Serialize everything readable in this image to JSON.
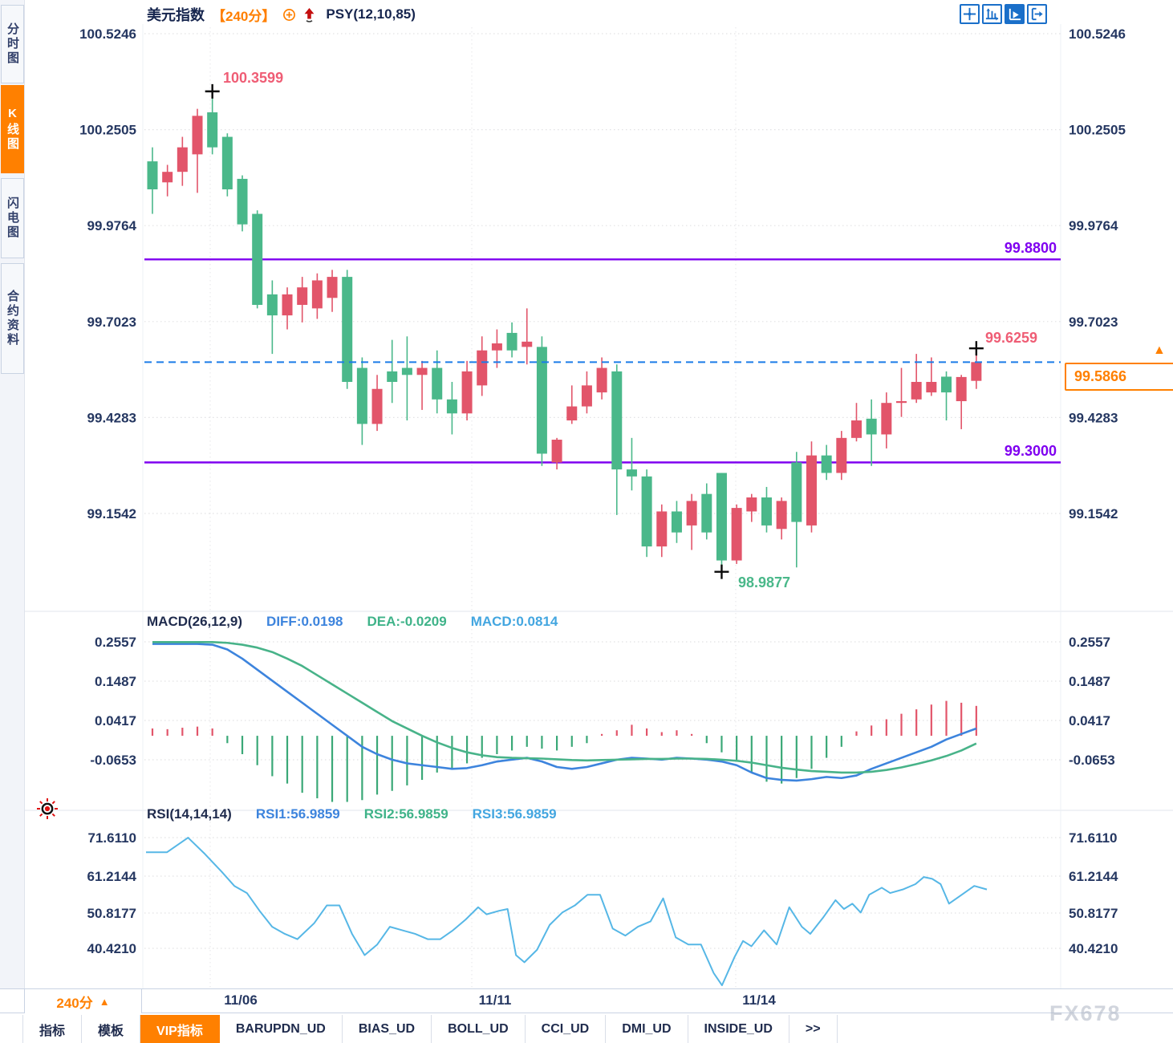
{
  "app": {
    "title": "美元指数",
    "interval_tag": "【240分】",
    "overlay_indicator": "PSY(12,10,85)"
  },
  "sidebar": {
    "tabs": [
      {
        "id": "time-share",
        "label": "分时图",
        "active": false
      },
      {
        "id": "kline",
        "label": "K线图",
        "active": true
      },
      {
        "id": "flash",
        "label": "闪电图",
        "active": false
      },
      {
        "id": "contract-info",
        "label": "合约资料",
        "active": false
      }
    ]
  },
  "toolbar": {
    "icons": [
      {
        "name": "crosshair-icon",
        "active": false
      },
      {
        "name": "axis-zoom-icon",
        "active": false
      },
      {
        "name": "auto-scale-icon",
        "active": true
      },
      {
        "name": "pan-export-icon",
        "active": false
      }
    ]
  },
  "annotations": {
    "high_label": "100.3599",
    "low_label": "98.9877",
    "last_high_label": "99.6259",
    "upper_level_label": "99.8800",
    "lower_level_label": "99.3000",
    "current_price_tag": "99.5866",
    "current_marker": "▲"
  },
  "macd_header": {
    "name": "MACD(26,12,9)",
    "diff": "DIFF:0.0198",
    "dea": "DEA:-0.0209",
    "macd": "MACD:0.0814"
  },
  "rsi_header": {
    "name": "RSI(14,14,14)",
    "rsi1": "RSI1:56.9859",
    "rsi2": "RSI2:56.9859",
    "rsi3": "RSI3:56.9859"
  },
  "x_axis": {
    "interval_button": "240分",
    "interval_arrow": "▲",
    "labels": [
      "11/06",
      "11/11",
      "11/14"
    ]
  },
  "bottom_tabs": [
    {
      "label": "指标",
      "active": false
    },
    {
      "label": "模板",
      "active": false
    },
    {
      "label": "VIP指标",
      "active": true
    },
    {
      "label": "BARUPDN_UD",
      "active": false
    },
    {
      "label": "BIAS_UD",
      "active": false
    },
    {
      "label": "BOLL_UD",
      "active": false
    },
    {
      "label": "CCI_UD",
      "active": false
    },
    {
      "label": "DMI_UD",
      "active": false
    },
    {
      "label": "INSIDE_UD",
      "active": false
    },
    {
      "label": ">>",
      "active": false
    }
  ],
  "watermark": "FX678",
  "colors": {
    "up_candle": "#e2556a",
    "down_candle": "#4ab88a",
    "level_line": "#7f00f0",
    "current_line": "#1b7ce8",
    "accent_orange": "#ff8000",
    "icon_blue": "#1a6fc9",
    "axis_text": "#253761",
    "diff_blue": "#3d84dd",
    "dea_green": "#48b389",
    "rsi_line": "#56b7e6",
    "hist_pos": "#e2556a",
    "hist_neg": "#3aa877"
  },
  "chart_data": [
    {
      "type": "candlestick",
      "title": "美元指数 240分",
      "y_ticks": [
        "100.5246",
        "100.2505",
        "99.9764",
        "99.7023",
        "99.4283",
        "99.1542"
      ],
      "y_top": 100.5246,
      "y_tick_step": 0.27408,
      "x_ticks": [
        "11/06",
        "11/11",
        "11/14"
      ],
      "levels": [
        {
          "price": 99.88,
          "label": "99.8800"
        },
        {
          "price": 99.3,
          "label": "99.3000"
        }
      ],
      "current_price": 99.5866,
      "markers": {
        "high": {
          "index": 5,
          "price": 100.3599
        },
        "low": {
          "index": 39,
          "price": 98.9877
        },
        "last": {
          "index": 56,
          "price": 99.6259
        }
      },
      "candles_ohlc": [
        [
          100.16,
          100.2,
          100.01,
          100.08
        ],
        [
          100.1,
          100.15,
          100.06,
          100.13
        ],
        [
          100.13,
          100.23,
          100.09,
          100.2
        ],
        [
          100.18,
          100.31,
          100.07,
          100.29
        ],
        [
          100.3,
          100.3599,
          100.18,
          100.2
        ],
        [
          100.23,
          100.24,
          100.06,
          100.08
        ],
        [
          100.11,
          100.12,
          99.96,
          99.98
        ],
        [
          100.01,
          100.02,
          99.74,
          99.75
        ],
        [
          99.78,
          99.82,
          99.61,
          99.72
        ],
        [
          99.72,
          99.8,
          99.68,
          99.78
        ],
        [
          99.75,
          99.83,
          99.7,
          99.8
        ],
        [
          99.74,
          99.84,
          99.71,
          99.82
        ],
        [
          99.77,
          99.85,
          99.73,
          99.83
        ],
        [
          99.83,
          99.85,
          99.51,
          99.53
        ],
        [
          99.57,
          99.6,
          99.35,
          99.41
        ],
        [
          99.41,
          99.55,
          99.39,
          99.51
        ],
        [
          99.56,
          99.65,
          99.47,
          99.53
        ],
        [
          99.57,
          99.66,
          99.42,
          99.55
        ],
        [
          99.55,
          99.59,
          99.45,
          99.57
        ],
        [
          99.57,
          99.62,
          99.44,
          99.48
        ],
        [
          99.48,
          99.53,
          99.38,
          99.44
        ],
        [
          99.44,
          99.59,
          99.42,
          99.56
        ],
        [
          99.52,
          99.66,
          99.49,
          99.62
        ],
        [
          99.62,
          99.68,
          99.57,
          99.64
        ],
        [
          99.67,
          99.7,
          99.6,
          99.62
        ],
        [
          99.63,
          99.74,
          99.58,
          99.645
        ],
        [
          99.63,
          99.66,
          99.29,
          99.325
        ],
        [
          99.3,
          99.37,
          99.28,
          99.365
        ],
        [
          99.42,
          99.52,
          99.41,
          99.46
        ],
        [
          99.46,
          99.56,
          99.44,
          99.52
        ],
        [
          99.5,
          99.6,
          99.48,
          99.57
        ],
        [
          99.56,
          99.58,
          99.15,
          99.28
        ],
        [
          99.28,
          99.37,
          99.22,
          99.26
        ],
        [
          99.26,
          99.28,
          99.03,
          99.06
        ],
        [
          99.06,
          99.18,
          99.03,
          99.16
        ],
        [
          99.16,
          99.19,
          99.07,
          99.1
        ],
        [
          99.12,
          99.21,
          99.05,
          99.19
        ],
        [
          99.21,
          99.24,
          99.08,
          99.1
        ],
        [
          99.27,
          99.27,
          98.9877,
          99.02
        ],
        [
          99.02,
          99.18,
          99.01,
          99.17
        ],
        [
          99.16,
          99.21,
          99.13,
          99.2
        ],
        [
          99.2,
          99.23,
          99.1,
          99.12
        ],
        [
          99.11,
          99.2,
          99.08,
          99.19
        ],
        [
          99.3,
          99.33,
          99.0,
          99.13
        ],
        [
          99.12,
          99.36,
          99.1,
          99.32
        ],
        [
          99.32,
          99.35,
          99.25,
          99.27
        ],
        [
          99.27,
          99.39,
          99.25,
          99.37
        ],
        [
          99.37,
          99.47,
          99.36,
          99.42
        ],
        [
          99.425,
          99.48,
          99.29,
          99.38
        ],
        [
          99.38,
          99.5,
          99.34,
          99.47
        ],
        [
          99.47,
          99.57,
          99.43,
          99.475
        ],
        [
          99.48,
          99.61,
          99.47,
          99.53
        ],
        [
          99.5,
          99.6,
          99.49,
          99.53
        ],
        [
          99.545,
          99.56,
          99.42,
          99.5
        ],
        [
          99.475,
          99.55,
          99.395,
          99.544
        ],
        [
          99.533,
          99.6259,
          99.51,
          99.5866
        ]
      ]
    },
    {
      "type": "macd",
      "label": "MACD(26,12,9)",
      "diff_value": 0.0198,
      "dea_value": -0.0209,
      "macd_value": 0.0814,
      "y_ticks": [
        "0.2557",
        "0.1487",
        "0.0417",
        "-0.0653"
      ],
      "histogram": [
        0.02,
        0.018,
        0.022,
        0.025,
        0.02,
        -0.02,
        -0.05,
        -0.08,
        -0.11,
        -0.13,
        -0.155,
        -0.17,
        -0.18,
        -0.18,
        -0.175,
        -0.16,
        -0.15,
        -0.135,
        -0.12,
        -0.1,
        -0.09,
        -0.075,
        -0.06,
        -0.05,
        -0.04,
        -0.03,
        -0.035,
        -0.04,
        -0.03,
        -0.02,
        0.005,
        0.015,
        0.03,
        0.02,
        0.01,
        0.015,
        0.005,
        -0.02,
        -0.045,
        -0.07,
        -0.1,
        -0.125,
        -0.13,
        -0.115,
        -0.09,
        -0.06,
        -0.03,
        0.012,
        0.028,
        0.045,
        0.06,
        0.072,
        0.085,
        0.095,
        0.09,
        0.0814
      ],
      "diff_line": [
        0.25,
        0.25,
        0.25,
        0.25,
        0.248,
        0.235,
        0.21,
        0.18,
        0.15,
        0.12,
        0.09,
        0.06,
        0.03,
        0.0,
        -0.03,
        -0.05,
        -0.065,
        -0.075,
        -0.08,
        -0.085,
        -0.09,
        -0.088,
        -0.08,
        -0.07,
        -0.065,
        -0.06,
        -0.07,
        -0.085,
        -0.09,
        -0.085,
        -0.075,
        -0.065,
        -0.06,
        -0.062,
        -0.065,
        -0.06,
        -0.062,
        -0.065,
        -0.07,
        -0.08,
        -0.1,
        -0.115,
        -0.12,
        -0.122,
        -0.118,
        -0.112,
        -0.115,
        -0.108,
        -0.09,
        -0.075,
        -0.06,
        -0.045,
        -0.03,
        -0.01,
        0.005,
        0.0198
      ],
      "dea_line": [
        0.255,
        0.255,
        0.255,
        0.255,
        0.255,
        0.253,
        0.248,
        0.24,
        0.228,
        0.21,
        0.19,
        0.165,
        0.14,
        0.115,
        0.09,
        0.065,
        0.04,
        0.02,
        0.0,
        -0.018,
        -0.033,
        -0.045,
        -0.053,
        -0.058,
        -0.06,
        -0.061,
        -0.062,
        -0.064,
        -0.066,
        -0.067,
        -0.066,
        -0.065,
        -0.064,
        -0.063,
        -0.063,
        -0.062,
        -0.062,
        -0.063,
        -0.065,
        -0.068,
        -0.073,
        -0.08,
        -0.087,
        -0.092,
        -0.096,
        -0.098,
        -0.1,
        -0.1,
        -0.098,
        -0.093,
        -0.086,
        -0.077,
        -0.067,
        -0.055,
        -0.04,
        -0.0209
      ]
    },
    {
      "type": "line",
      "label": "RSI(14,14,14)",
      "rsi1": 56.9859,
      "rsi2": 56.9859,
      "rsi3": 56.9859,
      "y_ticks": [
        "71.6110",
        "61.2144",
        "50.8177",
        "40.4210"
      ],
      "points": [
        [
          0.0,
          67.5
        ],
        [
          0.025,
          67.5
        ],
        [
          0.05,
          71.6
        ],
        [
          0.07,
          67.0
        ],
        [
          0.09,
          62.0
        ],
        [
          0.105,
          58.0
        ],
        [
          0.12,
          56.0
        ],
        [
          0.135,
          51.0
        ],
        [
          0.15,
          46.5
        ],
        [
          0.165,
          44.5
        ],
        [
          0.18,
          43.0
        ],
        [
          0.2,
          47.5
        ],
        [
          0.215,
          52.5
        ],
        [
          0.23,
          52.5
        ],
        [
          0.245,
          44.5
        ],
        [
          0.26,
          38.5
        ],
        [
          0.275,
          41.5
        ],
        [
          0.29,
          46.5
        ],
        [
          0.305,
          45.5
        ],
        [
          0.32,
          44.5
        ],
        [
          0.335,
          43.0
        ],
        [
          0.35,
          43.0
        ],
        [
          0.365,
          45.5
        ],
        [
          0.38,
          48.5
        ],
        [
          0.395,
          52.0
        ],
        [
          0.405,
          50.0
        ],
        [
          0.42,
          51.0
        ],
        [
          0.43,
          51.5
        ],
        [
          0.44,
          38.5
        ],
        [
          0.45,
          36.5
        ],
        [
          0.465,
          40.0
        ],
        [
          0.48,
          47.0
        ],
        [
          0.495,
          50.5
        ],
        [
          0.51,
          52.5
        ],
        [
          0.525,
          55.5
        ],
        [
          0.54,
          55.5
        ],
        [
          0.555,
          46.0
        ],
        [
          0.57,
          44.0
        ],
        [
          0.585,
          46.5
        ],
        [
          0.6,
          48.0
        ],
        [
          0.615,
          54.5
        ],
        [
          0.63,
          43.5
        ],
        [
          0.645,
          41.5
        ],
        [
          0.66,
          41.5
        ],
        [
          0.675,
          33.5
        ],
        [
          0.685,
          30.0
        ],
        [
          0.7,
          38.0
        ],
        [
          0.71,
          42.5
        ],
        [
          0.72,
          41.0
        ],
        [
          0.735,
          45.5
        ],
        [
          0.75,
          41.5
        ],
        [
          0.765,
          52.0
        ],
        [
          0.78,
          46.5
        ],
        [
          0.79,
          44.5
        ],
        [
          0.805,
          49.0
        ],
        [
          0.82,
          54.0
        ],
        [
          0.83,
          51.5
        ],
        [
          0.84,
          53.0
        ],
        [
          0.85,
          50.5
        ],
        [
          0.86,
          55.5
        ],
        [
          0.875,
          57.5
        ],
        [
          0.885,
          56.0
        ],
        [
          0.9,
          57.0
        ],
        [
          0.915,
          58.5
        ],
        [
          0.925,
          60.5
        ],
        [
          0.935,
          60.0
        ],
        [
          0.945,
          58.5
        ],
        [
          0.955,
          53.0
        ],
        [
          0.97,
          55.5
        ],
        [
          0.985,
          58.0
        ],
        [
          1.0,
          57.0
        ]
      ]
    }
  ]
}
